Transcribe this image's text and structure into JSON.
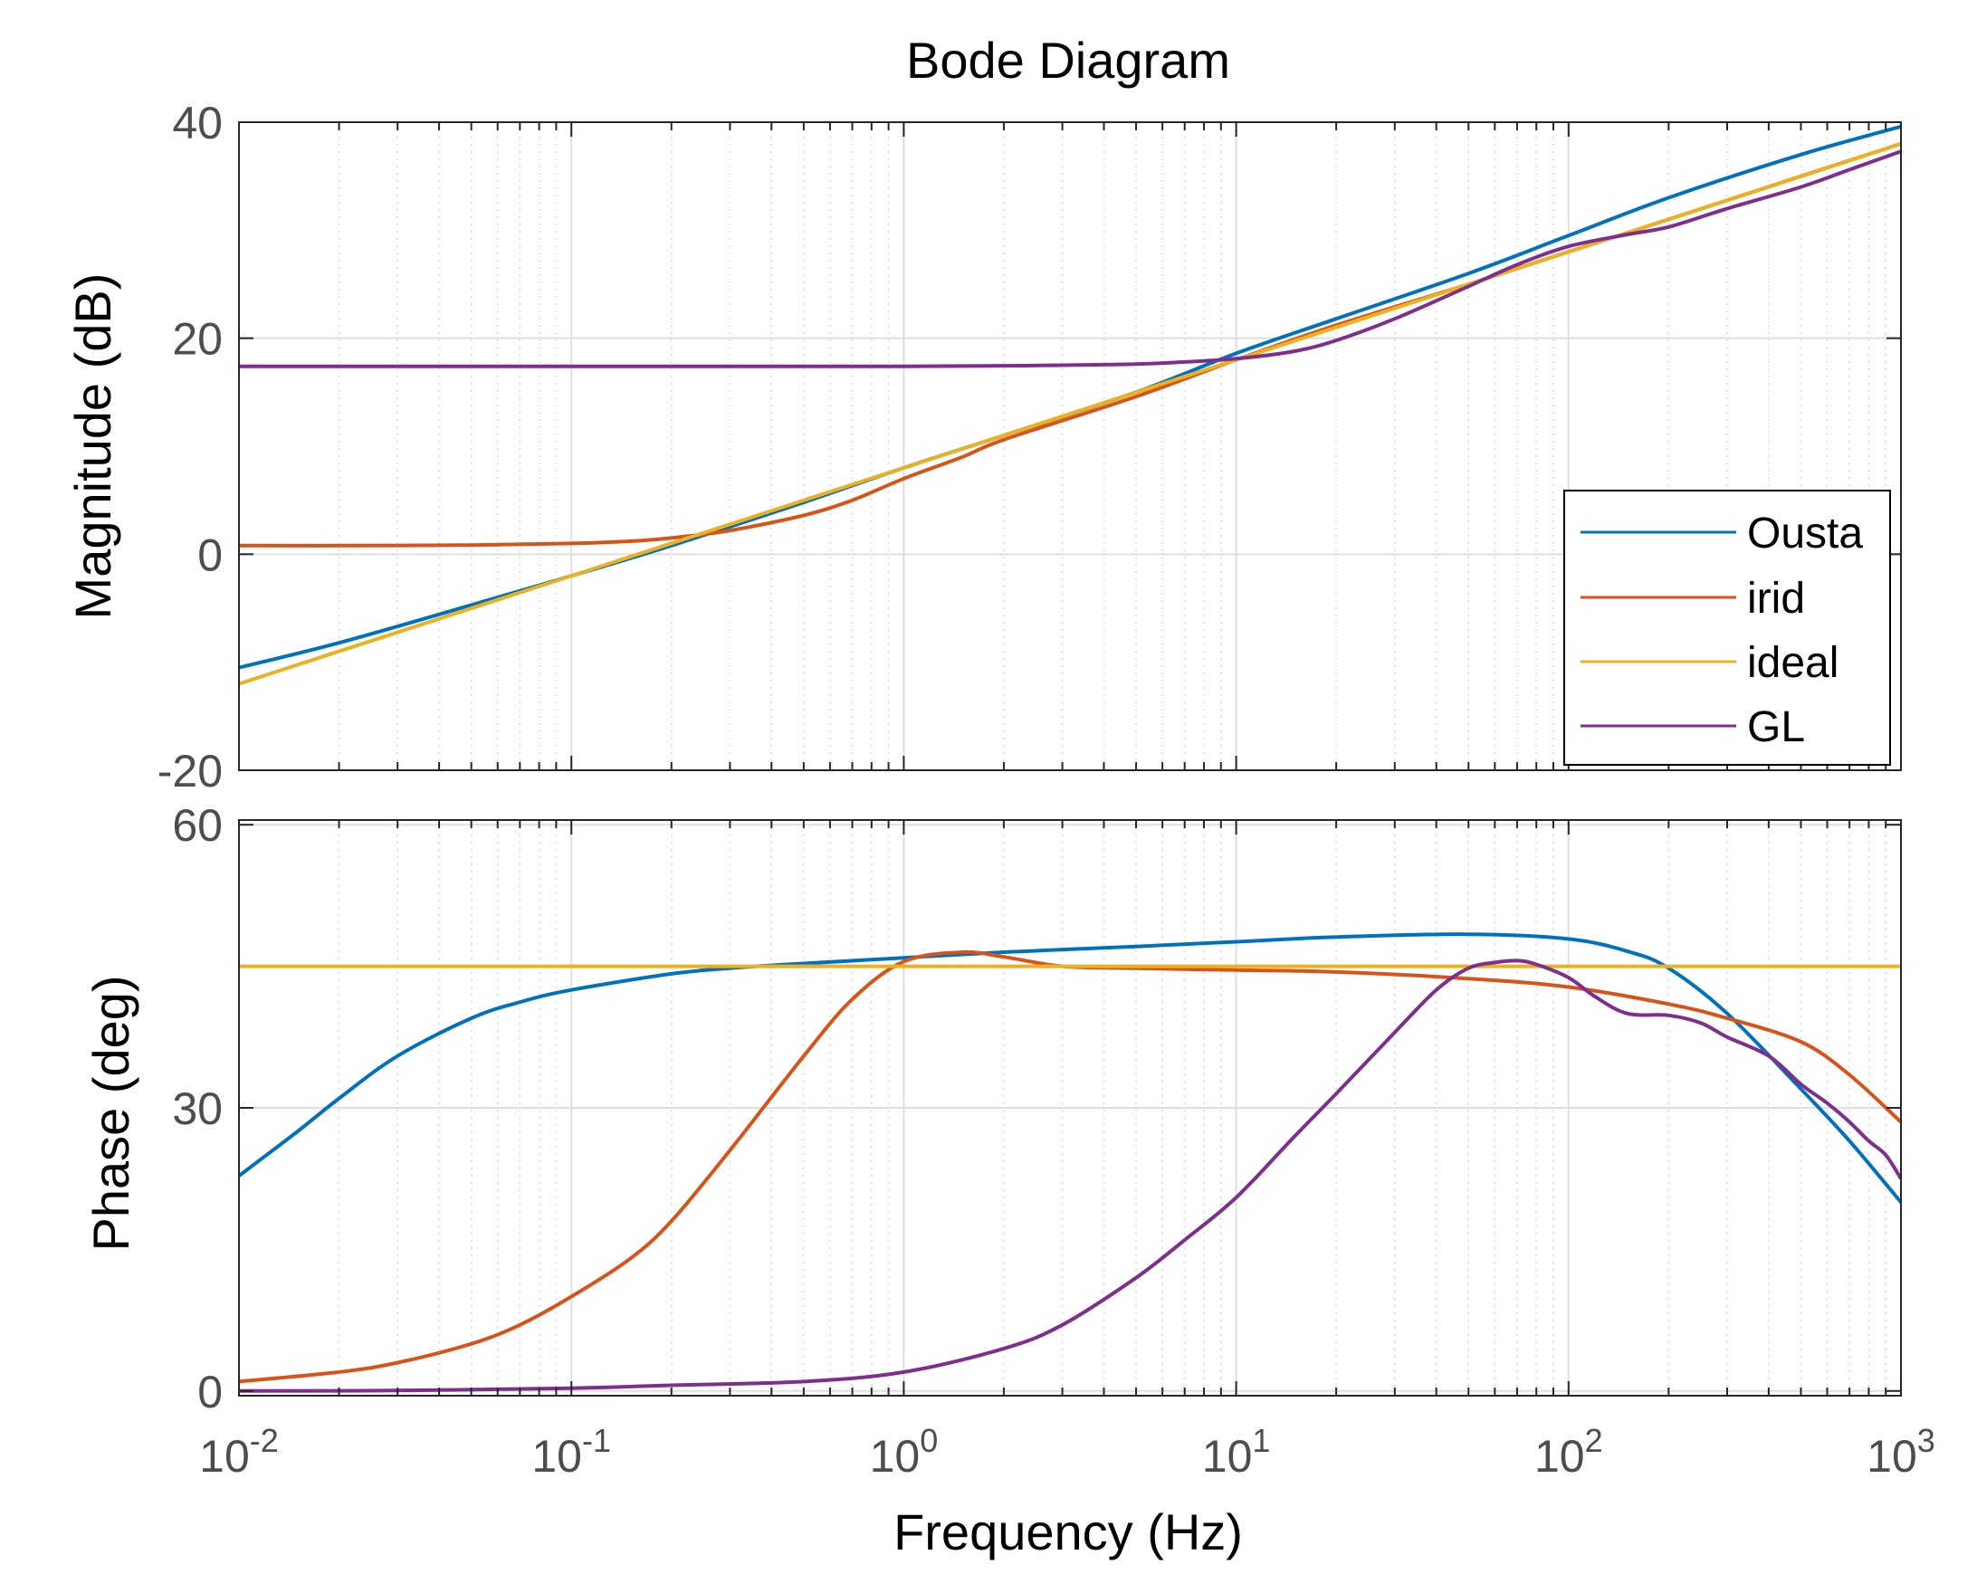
{
  "chart_data": [
    {
      "type": "line",
      "title": "Bode Diagram",
      "xlabel": "Frequency  (Hz)",
      "ylabel": "Magnitude (dB)",
      "xscale": "log",
      "xlim": [
        0.01,
        1000
      ],
      "ylim": [
        -20,
        40
      ],
      "yticks": [
        -20,
        0,
        20,
        40
      ],
      "grid": true,
      "legend": "bottom-right",
      "series": [
        {
          "name": "Ousta",
          "color": "#0072bd",
          "x": [
            0.01,
            0.02,
            0.05,
            0.1,
            0.2,
            0.5,
            1,
            2,
            5,
            10,
            20,
            50,
            100,
            200,
            500,
            1000
          ],
          "y": [
            -10.5,
            -8.2,
            -4.7,
            -2.0,
            0.8,
            4.8,
            8.0,
            11.0,
            15.0,
            18.6,
            21.8,
            26.0,
            29.5,
            33.0,
            37.0,
            39.6
          ]
        },
        {
          "name": "irid",
          "color": "#d95319",
          "x": [
            0.01,
            0.02,
            0.05,
            0.1,
            0.15,
            0.2,
            0.3,
            0.5,
            0.7,
            1,
            1.5,
            2,
            5,
            10,
            20,
            50,
            100,
            200,
            500,
            1000
          ],
          "y": [
            0.8,
            0.8,
            0.85,
            1.0,
            1.2,
            1.5,
            2.2,
            3.6,
            5.0,
            7.0,
            9.0,
            10.6,
            14.6,
            18.0,
            21.2,
            25.0,
            28.0,
            31.0,
            35.0,
            38.0
          ]
        },
        {
          "name": "ideal",
          "color": "#edb120",
          "x": [
            0.01,
            1000
          ],
          "y": [
            -12.0,
            38.0
          ]
        },
        {
          "name": "GL",
          "color": "#7e2f8e",
          "x": [
            0.01,
            0.1,
            1,
            2,
            3,
            5,
            7,
            10,
            15,
            20,
            30,
            50,
            70,
            100,
            150,
            200,
            300,
            500,
            700,
            1000
          ],
          "y": [
            17.4,
            17.4,
            17.4,
            17.45,
            17.5,
            17.6,
            17.8,
            18.1,
            18.8,
            19.8,
            21.8,
            24.8,
            26.8,
            28.5,
            29.6,
            30.3,
            32.0,
            34.0,
            35.6,
            37.3
          ]
        }
      ],
      "legend_entries": [
        "Ousta",
        "irid",
        "ideal",
        "GL"
      ]
    },
    {
      "type": "line",
      "xlabel": "Frequency  (Hz)",
      "ylabel": "Phase (deg)",
      "xscale": "log",
      "xlim": [
        0.01,
        1000
      ],
      "xticklabels": [
        {
          "base": "10",
          "exp": "-2"
        },
        {
          "base": "10",
          "exp": "-1"
        },
        {
          "base": "10",
          "exp": "0"
        },
        {
          "base": "10",
          "exp": "1"
        },
        {
          "base": "10",
          "exp": "2"
        },
        {
          "base": "10",
          "exp": "3"
        }
      ],
      "ylim": [
        -0.5,
        60.5
      ],
      "yticks": [
        0,
        30,
        60
      ],
      "grid": true,
      "series": [
        {
          "name": "Ousta",
          "color": "#0072bd",
          "x": [
            0.01,
            0.015,
            0.02,
            0.03,
            0.05,
            0.07,
            0.1,
            0.2,
            0.3,
            0.5,
            1,
            2,
            5,
            10,
            20,
            50,
            100,
            150,
            200,
            300,
            500,
            700,
            1000
          ],
          "y": [
            22.8,
            27.5,
            31.0,
            35.5,
            39.5,
            41.2,
            42.5,
            44.2,
            44.8,
            45.3,
            45.9,
            46.5,
            47.1,
            47.6,
            48.1,
            48.4,
            47.9,
            46.6,
            44.8,
            40.0,
            32.0,
            26.5,
            20.0
          ]
        },
        {
          "name": "irid",
          "color": "#d95319",
          "x": [
            0.01,
            0.02,
            0.03,
            0.05,
            0.07,
            0.1,
            0.15,
            0.2,
            0.3,
            0.5,
            0.7,
            1,
            1.5,
            2,
            3,
            5,
            10,
            20,
            50,
            100,
            200,
            300,
            500,
            700,
            1000
          ],
          "y": [
            1.0,
            2.0,
            3.0,
            5.0,
            7.0,
            10.0,
            14.0,
            18.0,
            25.5,
            35.5,
            41.5,
            45.5,
            46.5,
            46.0,
            45.0,
            44.8,
            44.6,
            44.4,
            43.7,
            42.8,
            41.0,
            39.5,
            37.0,
            33.5,
            28.5
          ]
        },
        {
          "name": "ideal",
          "color": "#edb120",
          "x": [
            0.01,
            1000
          ],
          "y": [
            45.0,
            45.0
          ]
        },
        {
          "name": "GL",
          "color": "#7e2f8e",
          "x": [
            0.01,
            0.03,
            0.1,
            0.2,
            0.5,
            1,
            2,
            3,
            5,
            7,
            10,
            15,
            20,
            30,
            40,
            50,
            60,
            70,
            80,
            100,
            120,
            150,
            200,
            250,
            300,
            400,
            500,
            600,
            700,
            800,
            900,
            1000
          ],
          "y": [
            0.0,
            0.05,
            0.3,
            0.6,
            1.0,
            2.0,
            4.5,
            7.0,
            12.0,
            16.0,
            20.5,
            27.0,
            31.5,
            38.0,
            42.5,
            44.8,
            45.4,
            45.6,
            45.2,
            43.8,
            41.8,
            40.0,
            39.8,
            39.0,
            37.5,
            35.5,
            32.5,
            30.5,
            28.5,
            26.5,
            25.0,
            22.5
          ]
        }
      ]
    }
  ]
}
